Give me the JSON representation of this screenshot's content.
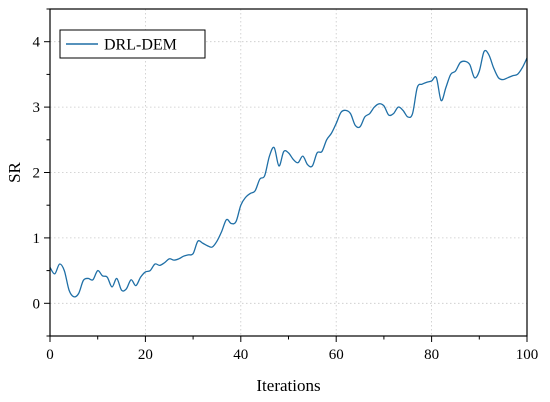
{
  "chart_data": {
    "type": "line",
    "title": "",
    "xlabel": "Iterations",
    "ylabel": "SR",
    "xlim": [
      0,
      100
    ],
    "ylim": [
      -0.5,
      4.5
    ],
    "xticks": [
      0,
      20,
      40,
      60,
      80,
      100
    ],
    "yticks": [
      0,
      1,
      2,
      3,
      4
    ],
    "xtick_labels": [
      "0",
      "20",
      "40",
      "60",
      "80",
      "100"
    ],
    "ytick_labels": [
      "0",
      "1",
      "2",
      "3",
      "4"
    ],
    "grid": true,
    "legend_position": "top-left",
    "series": [
      {
        "name": "DRL-DEM",
        "color": "#1f6fa6",
        "x": [
          0,
          1,
          2,
          3,
          4,
          5,
          6,
          7,
          8,
          9,
          10,
          11,
          12,
          13,
          14,
          15,
          16,
          17,
          18,
          19,
          20,
          21,
          22,
          23,
          24,
          25,
          26,
          27,
          28,
          29,
          30,
          31,
          32,
          33,
          34,
          35,
          36,
          37,
          38,
          39,
          40,
          41,
          42,
          43,
          44,
          45,
          46,
          47,
          48,
          49,
          50,
          51,
          52,
          53,
          54,
          55,
          56,
          57,
          58,
          59,
          60,
          61,
          62,
          63,
          64,
          65,
          66,
          67,
          68,
          69,
          70,
          71,
          72,
          73,
          74,
          75,
          76,
          77,
          78,
          79,
          80,
          81,
          82,
          83,
          84,
          85,
          86,
          87,
          88,
          89,
          90,
          91,
          92,
          93,
          94,
          95,
          96,
          97,
          98,
          99,
          100
        ],
        "y": [
          0.55,
          0.45,
          0.6,
          0.5,
          0.2,
          0.1,
          0.15,
          0.35,
          0.38,
          0.36,
          0.5,
          0.42,
          0.4,
          0.25,
          0.38,
          0.2,
          0.22,
          0.36,
          0.27,
          0.4,
          0.48,
          0.5,
          0.6,
          0.58,
          0.62,
          0.68,
          0.66,
          0.68,
          0.72,
          0.74,
          0.76,
          0.95,
          0.92,
          0.88,
          0.86,
          0.95,
          1.1,
          1.28,
          1.22,
          1.25,
          1.5,
          1.62,
          1.68,
          1.72,
          1.9,
          1.95,
          2.25,
          2.38,
          2.1,
          2.32,
          2.3,
          2.2,
          2.15,
          2.25,
          2.12,
          2.1,
          2.3,
          2.32,
          2.5,
          2.6,
          2.75,
          2.92,
          2.95,
          2.9,
          2.72,
          2.7,
          2.85,
          2.9,
          3.0,
          3.05,
          3.02,
          2.88,
          2.9,
          3.0,
          2.95,
          2.85,
          2.9,
          3.3,
          3.35,
          3.38,
          3.4,
          3.45,
          3.1,
          3.3,
          3.5,
          3.55,
          3.68,
          3.7,
          3.65,
          3.45,
          3.55,
          3.85,
          3.8,
          3.6,
          3.45,
          3.42,
          3.45,
          3.48,
          3.5,
          3.6,
          3.75
        ]
      }
    ]
  }
}
